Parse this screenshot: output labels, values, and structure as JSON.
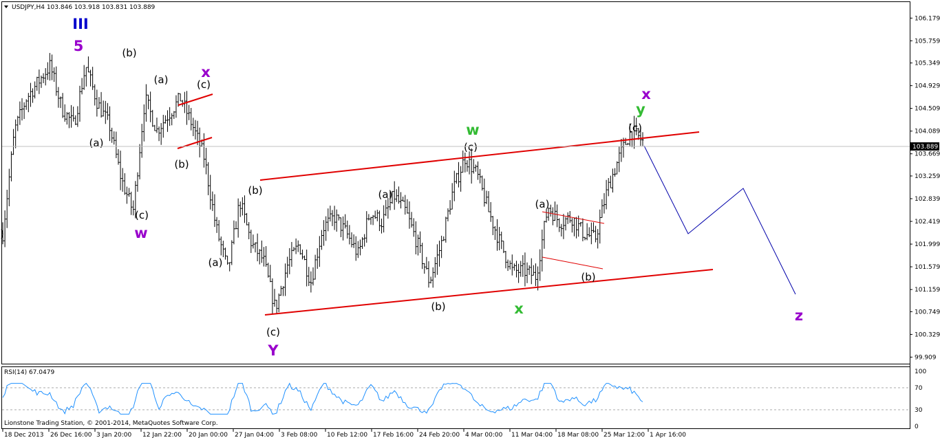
{
  "header": {
    "symbol_line": "USDJPY,H4  103.846 103.918 103.831 103.889"
  },
  "rsi": {
    "label": "RSI(14) 67.0479",
    "levels": [
      "100",
      "70",
      "30",
      "0"
    ]
  },
  "copyright": "Lionstone Trading Station, © 2001-2014, MetaQuotes Software Corp.",
  "current_price": "103.889",
  "colors": {
    "up": "#000000",
    "channel": "#e00000",
    "projection": "#0000aa",
    "rsi": "#1e90ff",
    "purple": "#9900cc",
    "navy": "#0000cc",
    "green": "#33bb33"
  },
  "chart_data": {
    "type": "candlestick",
    "symbol": "USDJPY",
    "timeframe": "H4",
    "y_ticks": [
      "106.179",
      "105.759",
      "105.349",
      "104.929",
      "104.509",
      "104.089",
      "103.669",
      "103.259",
      "102.839",
      "102.419",
      "101.999",
      "101.579",
      "101.159",
      "100.749",
      "100.329",
      "99.909"
    ],
    "ylim": [
      99.8,
      106.45
    ],
    "x_ticks": [
      "18 Dec 2013",
      "26 Dec 16:00",
      "3 Jan 20:00",
      "12 Jan 22:00",
      "20 Jan 00:00",
      "27 Jan 04:00",
      "3 Feb 08:00",
      "10 Feb 12:00",
      "17 Feb 16:00",
      "24 Feb 20:00",
      "4 Mar 00:00",
      "11 Mar 04:00",
      "18 Mar 08:00",
      "25 Mar 12:00",
      "1 Apr 16:00"
    ],
    "close_path": [
      102.2,
      104.1,
      104.7,
      105.0,
      105.3,
      104.5,
      104.2,
      105.3,
      104.6,
      104.2,
      103.2,
      102.6,
      104.7,
      104.1,
      104.4,
      104.7,
      104.2,
      103.6,
      102.3,
      101.5,
      102.8,
      102.0,
      101.7,
      100.8,
      101.6,
      102.0,
      101.3,
      102.3,
      102.5,
      102.2,
      101.8,
      102.6,
      102.4,
      102.9,
      102.6,
      102.0,
      101.3,
      102.0,
      103.0,
      103.6,
      103.3,
      102.6,
      102.0,
      101.5,
      101.5,
      101.4,
      102.7,
      102.4,
      102.5,
      102.2,
      102.1,
      103.0,
      103.6,
      104.1,
      103.9
    ]
  },
  "wave_labels": [
    {
      "text": "III",
      "kind": "navy"
    },
    {
      "text": "5",
      "kind": "purple"
    },
    {
      "text": "(b)",
      "kind": "black"
    },
    {
      "text": "(a)",
      "kind": "black"
    },
    {
      "text": "x",
      "kind": "purple"
    },
    {
      "text": "(c)",
      "kind": "black"
    },
    {
      "text": "(a)",
      "kind": "black"
    },
    {
      "text": "(b)",
      "kind": "black"
    },
    {
      "text": "(c)",
      "kind": "black"
    },
    {
      "text": "w",
      "kind": "purple"
    },
    {
      "text": "(a)",
      "kind": "black"
    },
    {
      "text": "(b)",
      "kind": "black"
    },
    {
      "text": "(c)",
      "kind": "black"
    },
    {
      "text": "Y",
      "kind": "purple"
    },
    {
      "text": "(a)",
      "kind": "black"
    },
    {
      "text": "(b)",
      "kind": "black"
    },
    {
      "text": "w",
      "kind": "green"
    },
    {
      "text": "(c)",
      "kind": "black"
    },
    {
      "text": "x",
      "kind": "green"
    },
    {
      "text": "(a)",
      "kind": "black"
    },
    {
      "text": "(b)",
      "kind": "black"
    },
    {
      "text": "x",
      "kind": "purple"
    },
    {
      "text": "y",
      "kind": "green"
    },
    {
      "text": "(c)",
      "kind": "black"
    },
    {
      "text": "z",
      "kind": "purple"
    },
    {
      "text": ")",
      "kind": "black"
    }
  ]
}
